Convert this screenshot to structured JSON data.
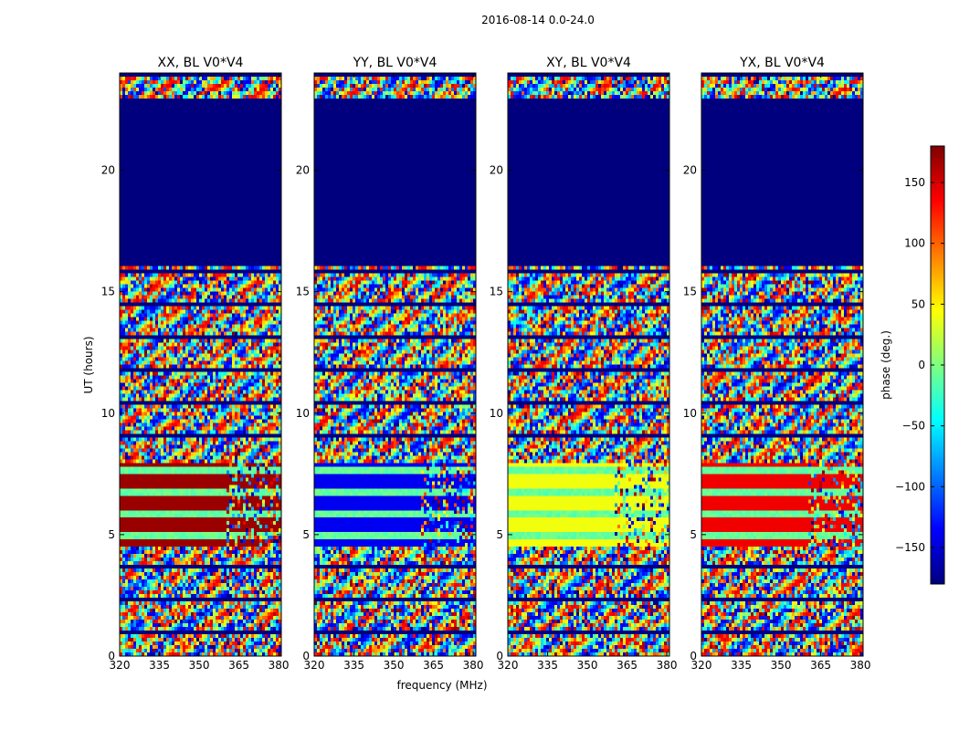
{
  "figure_title": "2016-08-14 0.0-24.0",
  "chart_data": [
    {
      "type": "heatmap",
      "title": "XX, BL V0*V4",
      "xlim": [
        320,
        381
      ],
      "ylim": [
        0,
        24
      ],
      "x_ticks": [
        320,
        335,
        350,
        365,
        380
      ],
      "y_ticks": [
        0,
        5,
        10,
        15,
        20
      ],
      "flagged_ut_range": [
        16.0,
        23.0
      ],
      "band_base_phase": -20,
      "bands": [
        {
          "ut": [
            4.5,
            8.0
          ],
          "phase": 170
        }
      ]
    },
    {
      "type": "heatmap",
      "title": "YY, BL V0*V4",
      "xlim": [
        320,
        381
      ],
      "ylim": [
        0,
        24
      ],
      "x_ticks": [
        320,
        335,
        350,
        365,
        380
      ],
      "y_ticks": [
        0,
        5,
        10,
        15,
        20
      ],
      "flagged_ut_range": [
        16.0,
        23.0
      ],
      "band_base_phase": -20,
      "bands": [
        {
          "ut": [
            4.5,
            8.0
          ],
          "phase": -140
        }
      ]
    },
    {
      "type": "heatmap",
      "title": "XY, BL V0*V4",
      "xlim": [
        320,
        381
      ],
      "ylim": [
        0,
        24
      ],
      "x_ticks": [
        320,
        335,
        350,
        365,
        380
      ],
      "y_ticks": [
        0,
        5,
        10,
        15,
        20
      ],
      "flagged_ut_range": [
        16.0,
        23.0
      ],
      "band_base_phase": -20,
      "bands": [
        {
          "ut": [
            4.5,
            8.0
          ],
          "phase": 40
        }
      ]
    },
    {
      "type": "heatmap",
      "title": "YX, BL V0*V4",
      "xlim": [
        320,
        381
      ],
      "ylim": [
        0,
        24
      ],
      "x_ticks": [
        320,
        335,
        350,
        365,
        380
      ],
      "y_ticks": [
        0,
        5,
        10,
        15,
        20
      ],
      "flagged_ut_range": [
        16.0,
        23.0
      ],
      "band_base_phase": -20,
      "bands": [
        {
          "ut": [
            4.5,
            8.0
          ],
          "phase": 140
        }
      ]
    }
  ],
  "shared_xlabel": "frequency (MHz)",
  "shared_ylabel": "UT (hours)",
  "colorbar": {
    "label": "phase (deg.)",
    "range": [
      -180,
      180
    ],
    "ticks": [
      150,
      100,
      50,
      0,
      -50,
      -100,
      -150
    ],
    "tick_labels": [
      "150",
      "100",
      "50",
      "0",
      "−50",
      "−100",
      "−150"
    ],
    "colormap": "jet",
    "colors": [
      "#00007f",
      "#0000ff",
      "#007fff",
      "#00ffff",
      "#7fff7f",
      "#ffff00",
      "#ff7f00",
      "#ff0000",
      "#7f0000"
    ]
  }
}
